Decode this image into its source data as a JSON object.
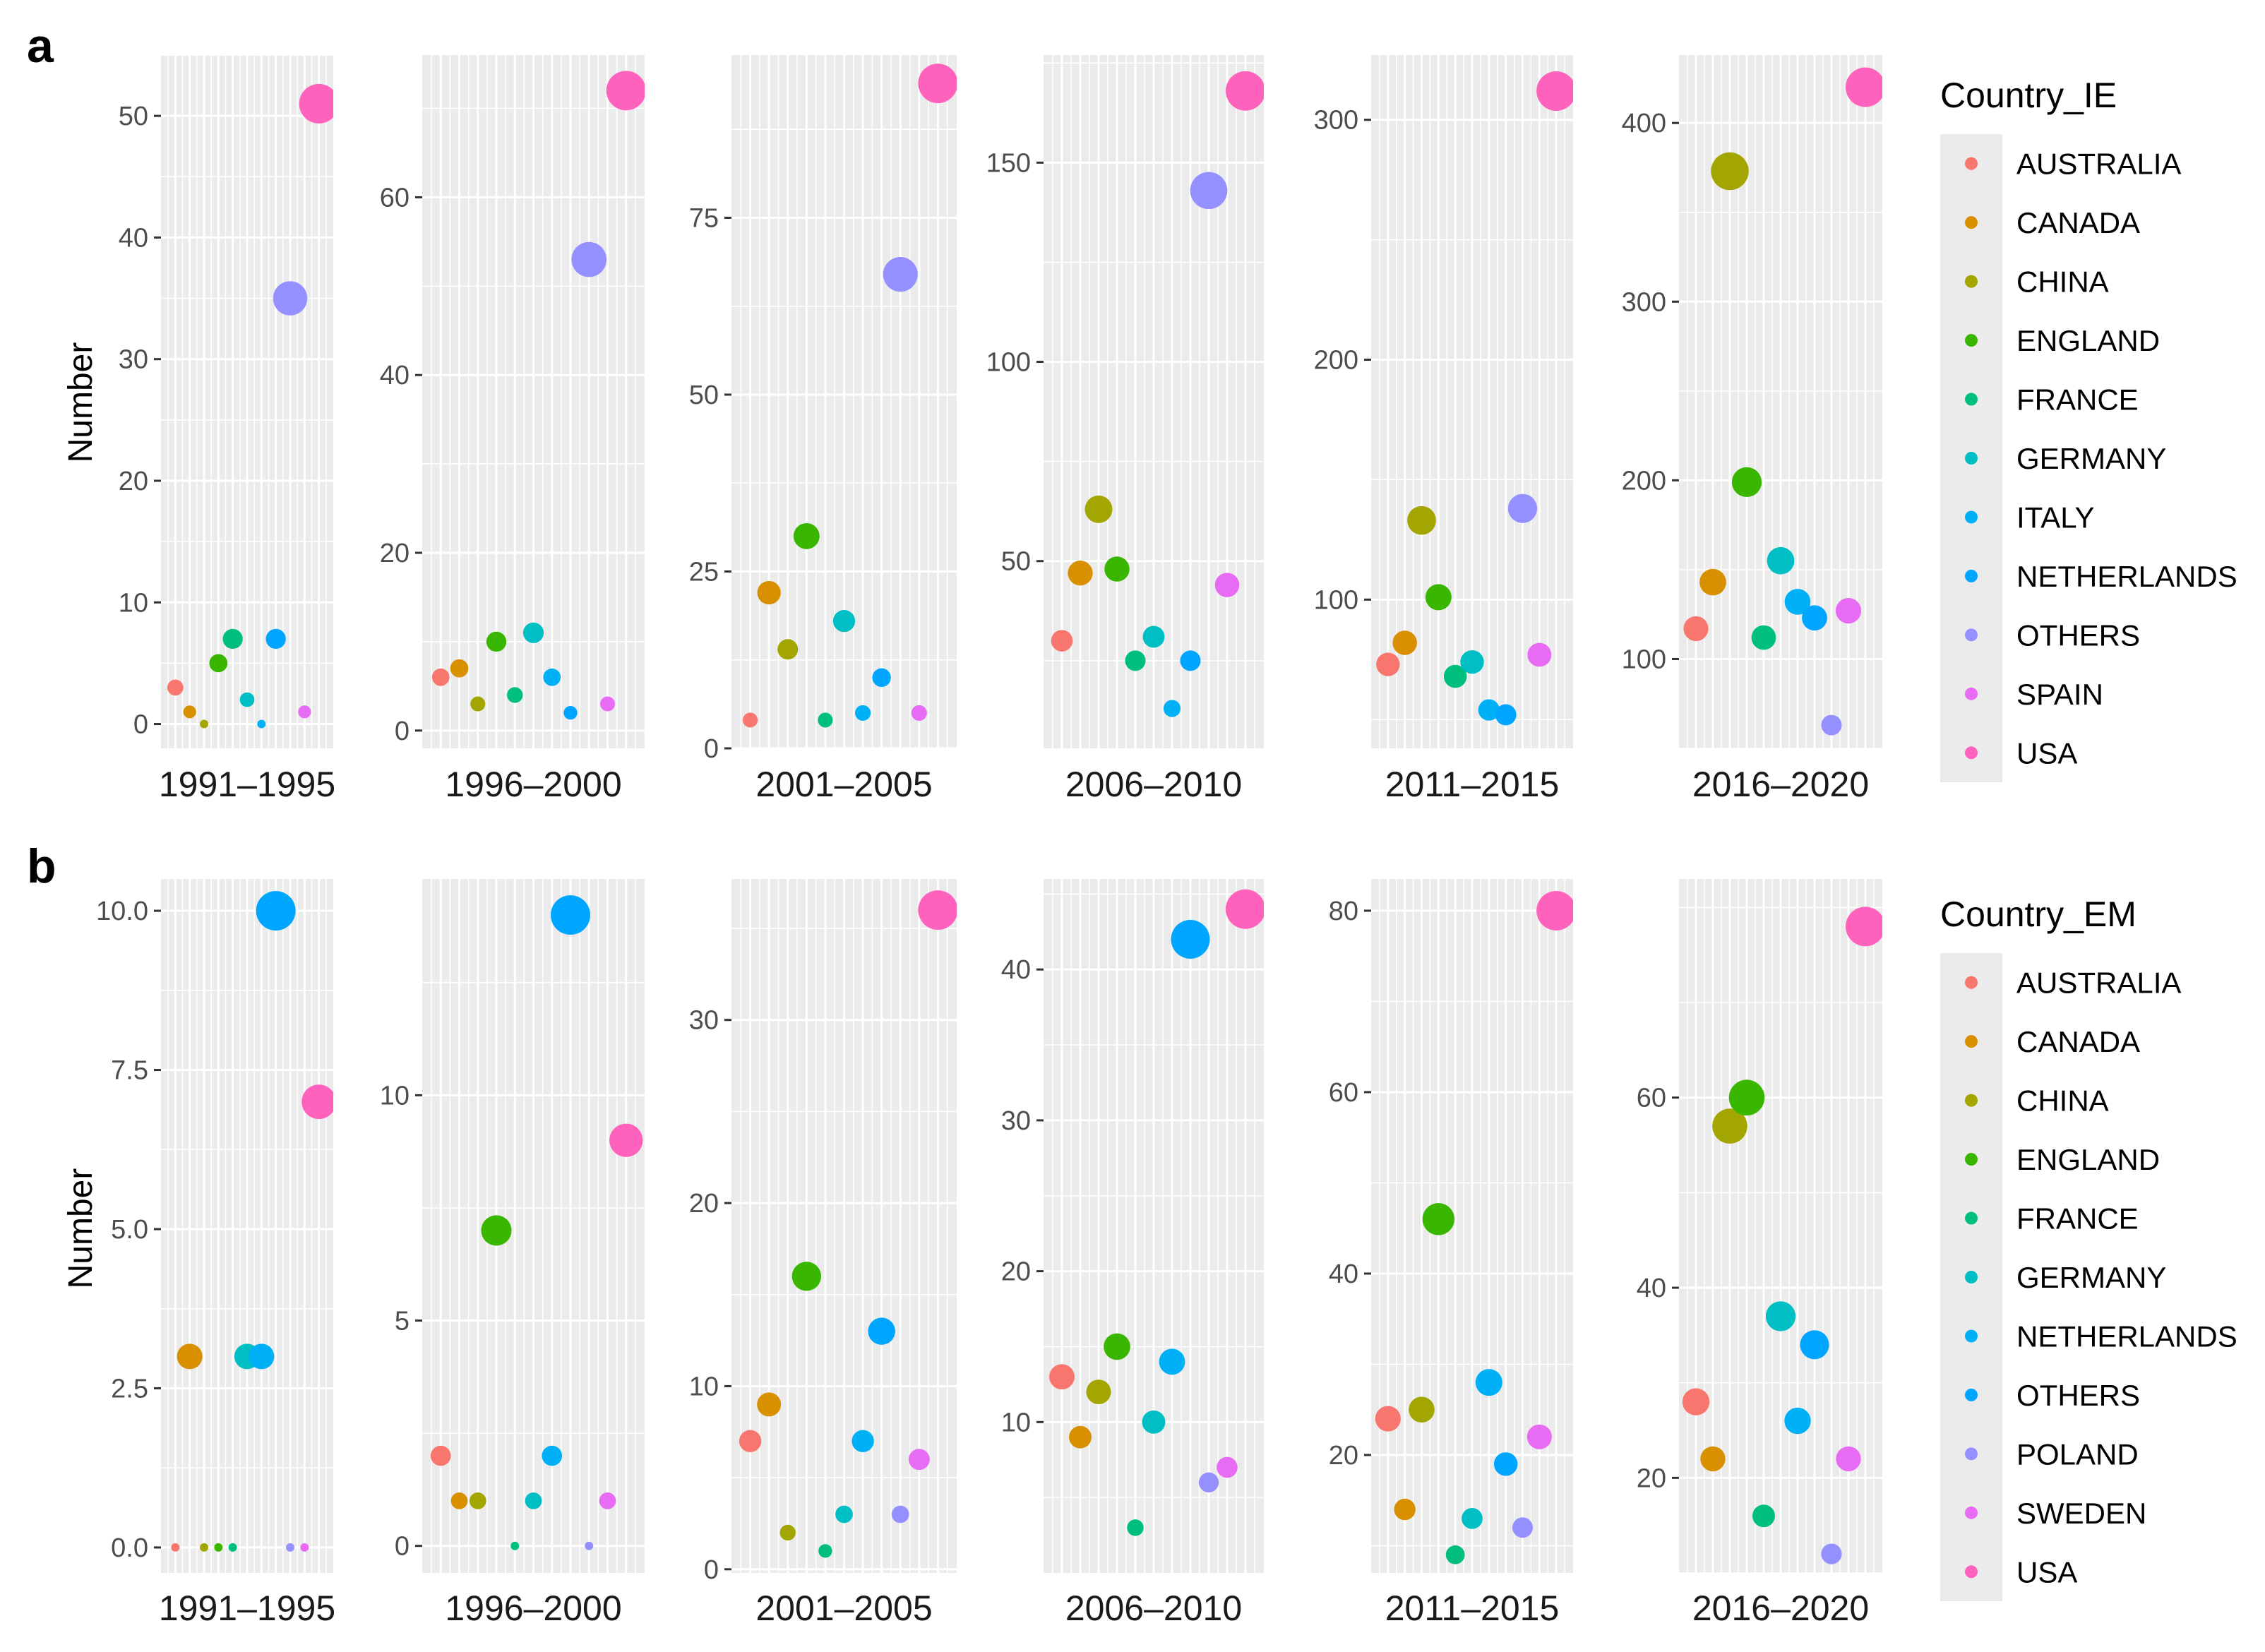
{
  "colors": {
    "AUSTRALIA": "#F8766D",
    "CANADA": "#D89000",
    "CHINA": "#A3A500",
    "ENGLAND": "#39B600",
    "FRANCE": "#00BF7D",
    "GERMANY": "#00BFC4",
    "ITALY": "#00B0F6",
    "NETHERLANDS": "#00A5FF",
    "OTHERS": "#9590FF",
    "SPAIN": "#E76BF3",
    "USA": "#FF62BC",
    "panel_bg": "#EBEBEB",
    "grid": "#FFFFFF"
  },
  "chart_data": [
    {
      "type": "scatter",
      "panel_label": "a",
      "ylabel": "Number",
      "legend_title": "Country_IE",
      "legend_position": "right",
      "grid": true,
      "series": [
        "AUSTRALIA",
        "CANADA",
        "CHINA",
        "ENGLAND",
        "FRANCE",
        "GERMANY",
        "ITALY",
        "NETHERLANDS",
        "OTHERS",
        "SPAIN",
        "USA"
      ],
      "series_colors": [
        "#F8766D",
        "#D89000",
        "#A3A500",
        "#39B600",
        "#00BF7D",
        "#00BFC4",
        "#00B0F6",
        "#00A5FF",
        "#9590FF",
        "#E76BF3",
        "#FF62BC"
      ],
      "facets": [
        {
          "label": "1991–1995",
          "ylim": [
            -2,
            55
          ],
          "yticks": [
            0,
            10,
            20,
            30,
            40,
            50
          ],
          "values": [
            3,
            1,
            0,
            5,
            7,
            2,
            0,
            7,
            35,
            1,
            51
          ]
        },
        {
          "label": "1996–2000",
          "ylim": [
            -2,
            76
          ],
          "yticks": [
            0,
            20,
            40,
            60
          ],
          "values": [
            6,
            7,
            3,
            10,
            4,
            11,
            6,
            2,
            53,
            3,
            72
          ]
        },
        {
          "label": "2001–2005",
          "ylim": [
            0,
            98
          ],
          "yticks": [
            0,
            25,
            50,
            75
          ],
          "values": [
            4,
            22,
            14,
            30,
            4,
            18,
            5,
            10,
            67,
            5,
            94
          ]
        },
        {
          "label": "2006–2010",
          "ylim": [
            3,
            177
          ],
          "yticks": [
            50,
            100,
            150
          ],
          "values": [
            30,
            47,
            63,
            48,
            25,
            31,
            13,
            25,
            143,
            44,
            168
          ]
        },
        {
          "label": "2011–2015",
          "ylim": [
            38,
            327
          ],
          "yticks": [
            100,
            200,
            300
          ],
          "values": [
            73,
            82,
            133,
            101,
            68,
            74,
            54,
            52,
            138,
            77,
            312
          ]
        },
        {
          "label": "2016–2020",
          "ylim": [
            50,
            438
          ],
          "yticks": [
            100,
            200,
            300,
            400
          ],
          "values": [
            117,
            143,
            373,
            199,
            112,
            155,
            132,
            123,
            63,
            127,
            420
          ]
        }
      ]
    },
    {
      "type": "scatter",
      "panel_label": "b",
      "ylabel": "Number",
      "legend_title": "Country_EM",
      "legend_position": "right",
      "grid": true,
      "series": [
        "AUSTRALIA",
        "CANADA",
        "CHINA",
        "ENGLAND",
        "FRANCE",
        "GERMANY",
        "NETHERLANDS",
        "OTHERS",
        "POLAND",
        "SWEDEN",
        "USA"
      ],
      "series_colors": [
        "#F8766D",
        "#D89000",
        "#A3A500",
        "#39B600",
        "#00BF7D",
        "#00BFC4",
        "#00B0F6",
        "#00A5FF",
        "#9590FF",
        "#E76BF3",
        "#FF62BC"
      ],
      "facets": [
        {
          "label": "1991–1995",
          "ylim": [
            -0.4,
            10.5
          ],
          "yticks": [
            0.0,
            2.5,
            5.0,
            7.5,
            10.0
          ],
          "tick_labels": [
            "0.0",
            "2.5",
            "5.0",
            "7.5",
            "10.0"
          ],
          "values": [
            0,
            3,
            0,
            0,
            0,
            3,
            3,
            10,
            0,
            0,
            7
          ]
        },
        {
          "label": "1996–2000",
          "ylim": [
            -0.6,
            14.8
          ],
          "yticks": [
            0,
            5,
            10
          ],
          "values": [
            2,
            1,
            1,
            7,
            0,
            1,
            2,
            14,
            0,
            1,
            9
          ]
        },
        {
          "label": "2001–2005",
          "ylim": [
            -0.2,
            37.7
          ],
          "yticks": [
            0,
            10,
            20,
            30
          ],
          "values": [
            7,
            9,
            2,
            16,
            1,
            3,
            7,
            13,
            3,
            6,
            36
          ]
        },
        {
          "label": "2006–2010",
          "ylim": [
            0,
            46
          ],
          "yticks": [
            10,
            20,
            30,
            40
          ],
          "values": [
            13,
            9,
            12,
            15,
            3,
            10,
            14,
            42,
            6,
            7,
            44
          ]
        },
        {
          "label": "2011–2015",
          "ylim": [
            7,
            83.5
          ],
          "yticks": [
            20,
            40,
            60,
            80
          ],
          "values": [
            24,
            14,
            25,
            46,
            9,
            13,
            28,
            19,
            12,
            22,
            80
          ]
        },
        {
          "label": "2016–2020",
          "ylim": [
            10,
            83
          ],
          "yticks": [
            20,
            40,
            60
          ],
          "values": [
            28,
            22,
            57,
            60,
            16,
            37,
            26,
            34,
            12,
            22,
            78
          ]
        }
      ]
    }
  ]
}
